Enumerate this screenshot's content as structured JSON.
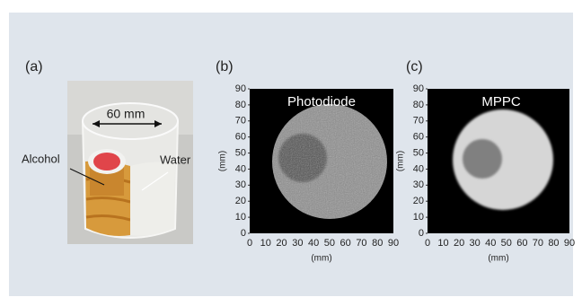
{
  "panels": {
    "a": {
      "label": "(a)",
      "dimension": "60 mm",
      "left_label": "Alcohol",
      "right_label": "Water"
    },
    "b": {
      "label": "(b)",
      "title": "Photodiode",
      "xlabel": "(mm)",
      "ylabel": "(mm)",
      "ticks": [
        0,
        10,
        20,
        30,
        40,
        50,
        60,
        70,
        80,
        90
      ]
    },
    "c": {
      "label": "(c)",
      "title": "MPPC",
      "xlabel": "(mm)",
      "ylabel": "(mm)",
      "ticks": [
        0,
        10,
        20,
        30,
        40,
        50,
        60,
        70,
        80,
        90
      ]
    }
  }
}
